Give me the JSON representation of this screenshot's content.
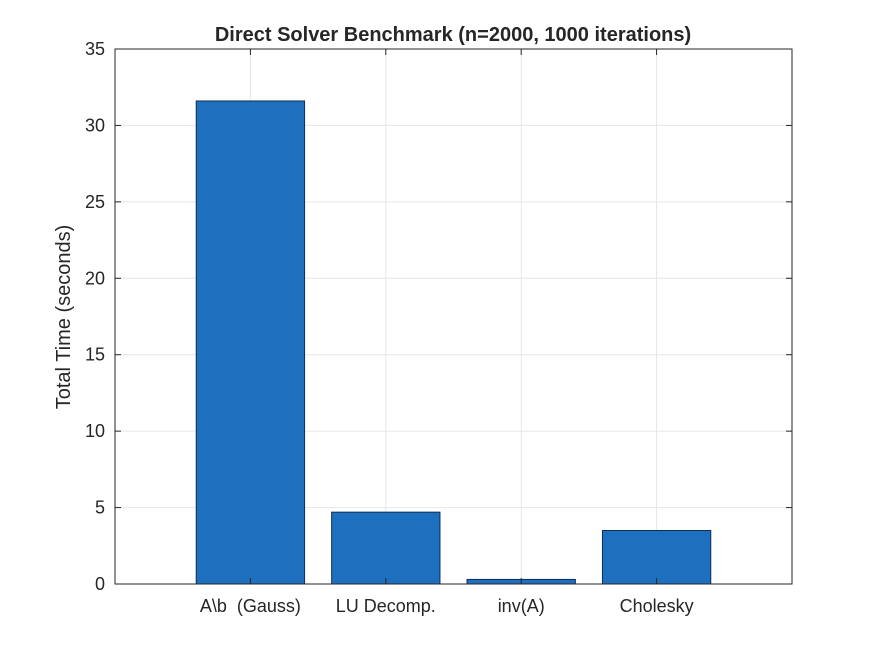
{
  "chart_data": {
    "type": "bar",
    "title": "Direct Solver Benchmark (n=2000, 1000 iterations)",
    "xlabel": "",
    "ylabel": "Total Time (seconds)",
    "categories": [
      "A\\b  (Gauss)",
      "LU Decomp.",
      "inv(A)",
      "Cholesky"
    ],
    "values": [
      31.6,
      4.7,
      0.3,
      3.5
    ],
    "ylim": [
      0,
      35
    ],
    "yticks": [
      0,
      5,
      10,
      15,
      20,
      25,
      30,
      35
    ],
    "grid": true,
    "bar_color": "#1f6fbf",
    "bar_edge_color": "#0d2f57",
    "axis_color": "#262626",
    "grid_color": "#e6e6e6"
  }
}
